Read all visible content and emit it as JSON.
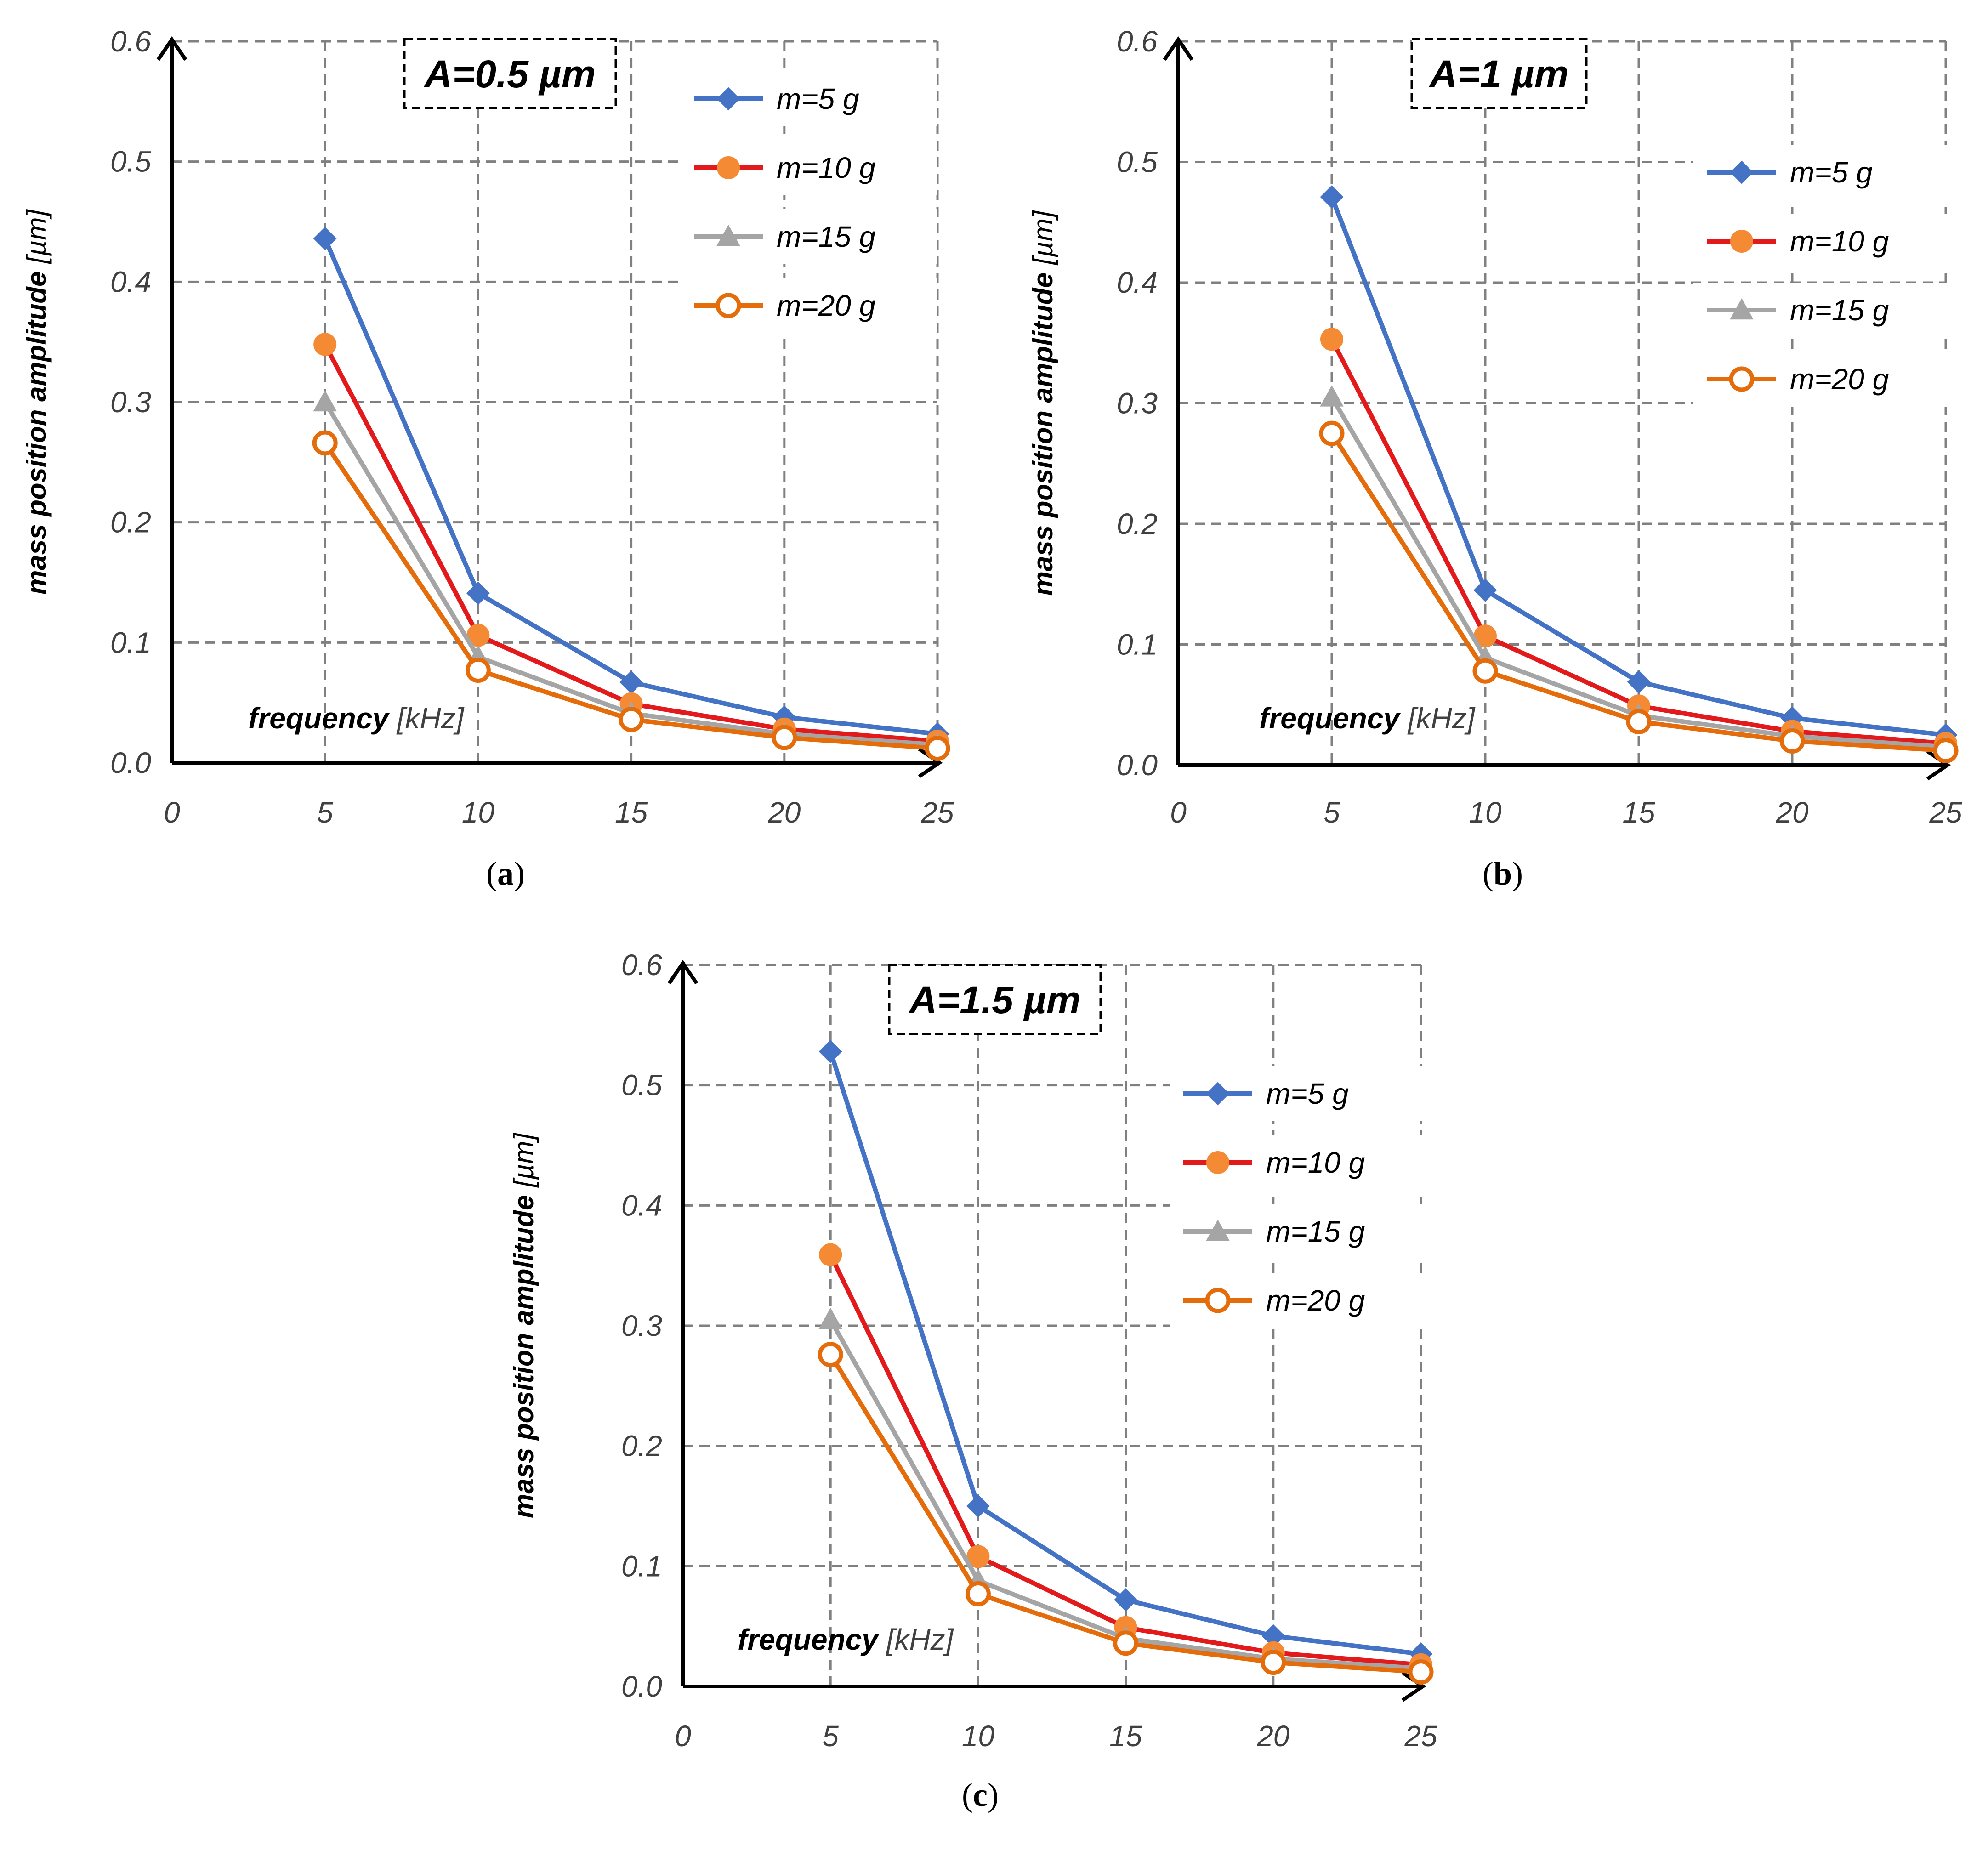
{
  "figure": {
    "panel_labels": [
      "a",
      "b",
      "c"
    ]
  },
  "chart_data": [
    {
      "type": "line",
      "panel": "a",
      "annotation": "A=0.5 µm",
      "xlabel": "frequency",
      "xlabel_unit": "[kHz]",
      "ylabel": "mass position amplitude",
      "ylabel_unit": "[µm]",
      "xlim": [
        0,
        25
      ],
      "ylim": [
        0,
        0.6
      ],
      "xticks": [
        "0",
        "5",
        "10",
        "15",
        "20",
        "25"
      ],
      "yticks": [
        "0.0",
        "0.1",
        "0.2",
        "0.3",
        "0.4",
        "0.5",
        "0.6"
      ],
      "grid": true,
      "legend_position": "top-right",
      "x": [
        5,
        10,
        15,
        20,
        25
      ],
      "series": [
        {
          "name": "m=5 g",
          "color": "#4472C4",
          "marker": "diamond",
          "values": [
            0.436,
            0.141,
            0.067,
            0.038,
            0.024
          ]
        },
        {
          "name": "m=10 g",
          "color": "#E31A1C",
          "marker": "circle-filled",
          "markerColor": "#F58A35",
          "values": [
            0.348,
            0.106,
            0.049,
            0.028,
            0.018
          ]
        },
        {
          "name": "m=15 g",
          "color": "#A5A5A5",
          "marker": "triangle",
          "values": [
            0.3,
            0.088,
            0.041,
            0.024,
            0.015
          ]
        },
        {
          "name": "m=20 g",
          "color": "#E46C0A",
          "marker": "circle-open",
          "values": [
            0.266,
            0.077,
            0.036,
            0.021,
            0.012
          ]
        }
      ]
    },
    {
      "type": "line",
      "panel": "b",
      "annotation": "A=1 µm",
      "xlabel": "frequency",
      "xlabel_unit": "[kHz]",
      "ylabel": "mass position amplitude",
      "ylabel_unit": "[µm]",
      "xlim": [
        0,
        25
      ],
      "ylim": [
        0,
        0.6
      ],
      "xticks": [
        "0",
        "5",
        "10",
        "15",
        "20",
        "25"
      ],
      "yticks": [
        "0.0",
        "0.1",
        "0.2",
        "0.3",
        "0.4",
        "0.5",
        "0.6"
      ],
      "grid": true,
      "legend_position": "top-right",
      "x": [
        5,
        10,
        15,
        20,
        25
      ],
      "series": [
        {
          "name": "m=5 g",
          "color": "#4472C4",
          "marker": "diamond",
          "values": [
            0.471,
            0.145,
            0.069,
            0.039,
            0.025
          ]
        },
        {
          "name": "m=10 g",
          "color": "#E31A1C",
          "marker": "circle-filled",
          "markerColor": "#F58A35",
          "values": [
            0.353,
            0.107,
            0.049,
            0.028,
            0.018
          ]
        },
        {
          "name": "m=15 g",
          "color": "#A5A5A5",
          "marker": "triangle",
          "values": [
            0.305,
            0.089,
            0.041,
            0.024,
            0.015
          ]
        },
        {
          "name": "m=20 g",
          "color": "#E46C0A",
          "marker": "circle-open",
          "values": [
            0.275,
            0.078,
            0.036,
            0.02,
            0.012
          ]
        }
      ]
    },
    {
      "type": "line",
      "panel": "c",
      "annotation": "A=1.5 µm",
      "xlabel": "frequency",
      "xlabel_unit": "[kHz]",
      "ylabel": "mass position amplitude",
      "ylabel_unit": "[µm]",
      "xlim": [
        0,
        25
      ],
      "ylim": [
        0,
        0.6
      ],
      "xticks": [
        "0",
        "5",
        "10",
        "15",
        "20",
        "25"
      ],
      "yticks": [
        "0.0",
        "0.1",
        "0.2",
        "0.3",
        "0.4",
        "0.5",
        "0.6"
      ],
      "grid": true,
      "legend_position": "top-right",
      "x": [
        5,
        10,
        15,
        20,
        25
      ],
      "series": [
        {
          "name": "m=5 g",
          "color": "#4472C4",
          "marker": "diamond",
          "values": [
            0.528,
            0.15,
            0.072,
            0.042,
            0.027
          ]
        },
        {
          "name": "m=10 g",
          "color": "#E31A1C",
          "marker": "circle-filled",
          "markerColor": "#F58A35",
          "values": [
            0.359,
            0.108,
            0.049,
            0.028,
            0.018
          ]
        },
        {
          "name": "m=15 g",
          "color": "#A5A5A5",
          "marker": "triangle",
          "values": [
            0.305,
            0.088,
            0.04,
            0.023,
            0.015
          ]
        },
        {
          "name": "m=20 g",
          "color": "#E46C0A",
          "marker": "circle-open",
          "values": [
            0.276,
            0.077,
            0.036,
            0.02,
            0.012
          ]
        }
      ]
    }
  ]
}
